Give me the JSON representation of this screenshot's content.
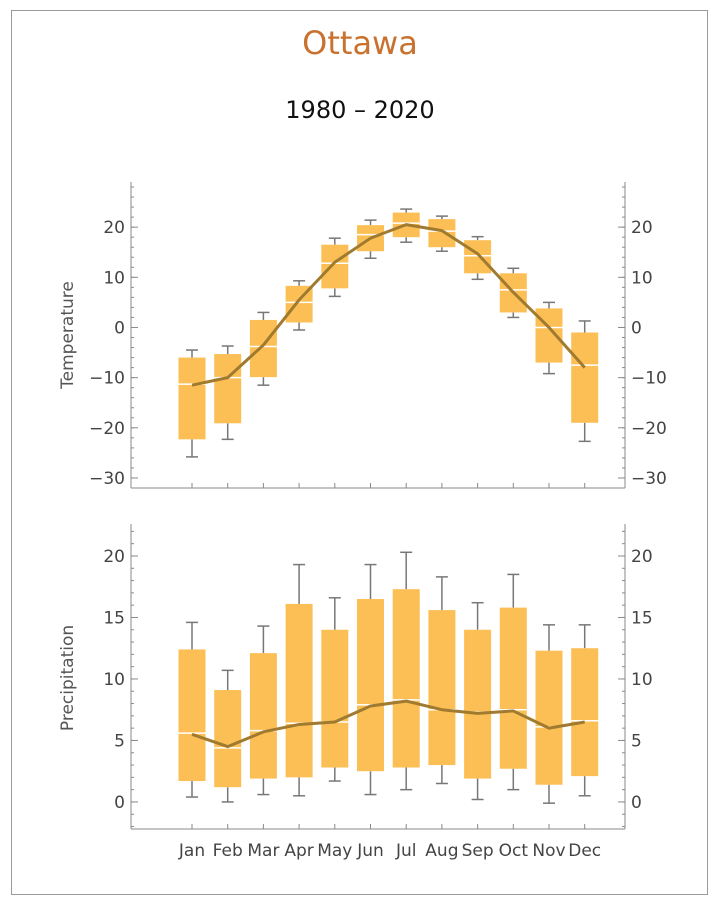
{
  "title": "Ottawa",
  "subtitle": "1980 – 2020",
  "colors": {
    "title": "#c9712f",
    "box": "#fbbf55",
    "median": "#ffffff",
    "line": "#a07a2e",
    "whisker": "#777777",
    "axis": "#8a8a8a",
    "tick_text": "#444444"
  },
  "chart_data": [
    {
      "type": "box",
      "ylabel": "Temperature",
      "ylim": [
        -32,
        29
      ],
      "yticks": [
        20,
        10,
        0,
        -10,
        -20,
        -30
      ],
      "ytick_labels": [
        "20",
        "10",
        "0",
        "−10",
        "−20",
        "−30"
      ],
      "categories": [
        "Jan",
        "Feb",
        "Mar",
        "Apr",
        "May",
        "Jun",
        "Jul",
        "Aug",
        "Sep",
        "Oct",
        "Nov",
        "Dec"
      ],
      "whisker_low": [
        -25.8,
        -22.3,
        -11.5,
        -0.5,
        6.2,
        13.8,
        17.0,
        15.2,
        9.6,
        2.0,
        -9.2,
        -22.7
      ],
      "q1": [
        -22.3,
        -19.1,
        -9.9,
        1.0,
        7.8,
        15.2,
        18.0,
        16.0,
        10.8,
        3.0,
        -7.0,
        -19.0
      ],
      "median": [
        -11.3,
        -10.0,
        -3.8,
        5.0,
        12.8,
        18.5,
        20.8,
        19.2,
        14.3,
        7.5,
        0.0,
        -7.5
      ],
      "q3": [
        -6.0,
        -5.3,
        1.5,
        8.3,
        16.5,
        20.4,
        22.9,
        21.6,
        17.4,
        10.8,
        3.8,
        -1.0
      ],
      "whisker_high": [
        -4.5,
        -3.7,
        3.0,
        9.3,
        17.8,
        21.4,
        23.6,
        22.2,
        18.1,
        11.8,
        5.0,
        1.3
      ],
      "mean": [
        -11.5,
        -10.0,
        -3.5,
        5.5,
        13.0,
        17.8,
        20.5,
        19.3,
        14.7,
        7.0,
        0.0,
        -8.0
      ]
    },
    {
      "type": "box",
      "ylabel": "Precipitation",
      "ylim": [
        -2.2,
        22.6
      ],
      "yticks": [
        20,
        15,
        10,
        5,
        0
      ],
      "ytick_labels": [
        "20",
        "15",
        "10",
        "5",
        "0"
      ],
      "categories": [
        "Jan",
        "Feb",
        "Mar",
        "Apr",
        "May",
        "Jun",
        "Jul",
        "Aug",
        "Sep",
        "Oct",
        "Nov",
        "Dec"
      ],
      "whisker_low": [
        0.4,
        0.0,
        0.6,
        0.5,
        1.7,
        0.6,
        1.0,
        1.5,
        0.2,
        1.0,
        -0.1,
        0.5
      ],
      "q1": [
        1.7,
        1.2,
        1.9,
        2.0,
        2.8,
        2.5,
        2.8,
        3.0,
        1.9,
        2.7,
        1.4,
        2.1
      ],
      "median": [
        5.6,
        4.4,
        5.8,
        6.4,
        6.5,
        7.9,
        8.3,
        7.5,
        7.3,
        7.5,
        6.1,
        6.6
      ],
      "q3": [
        12.4,
        9.1,
        12.1,
        16.1,
        14.0,
        16.5,
        17.3,
        15.6,
        14.0,
        15.8,
        12.3,
        12.5
      ],
      "whisker_high": [
        14.6,
        10.7,
        14.3,
        19.3,
        16.6,
        19.3,
        20.3,
        18.3,
        16.2,
        18.5,
        14.4,
        14.4
      ],
      "mean": [
        5.5,
        4.5,
        5.7,
        6.3,
        6.5,
        7.8,
        8.2,
        7.5,
        7.2,
        7.4,
        6.0,
        6.5
      ]
    }
  ]
}
